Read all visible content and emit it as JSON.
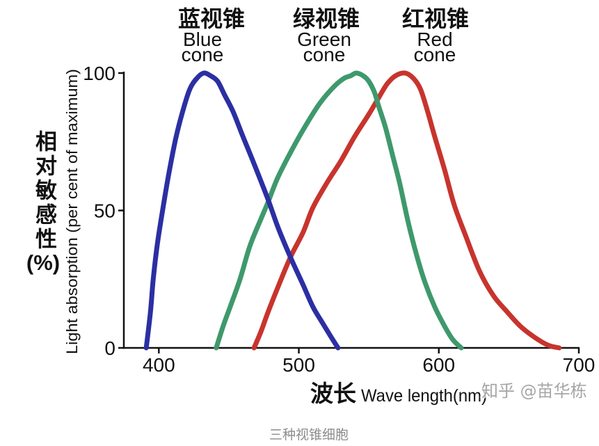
{
  "caption": "三种视锥细胞",
  "watermark": "知乎 @苗华栋",
  "colors": {
    "background": "#ffffff",
    "axis": "#111111",
    "caption": "#8c8c8c",
    "watermark": "#a6a6a6"
  },
  "chart_data": {
    "type": "line",
    "xlabel_zh": "波长",
    "xlabel": "Wave length(nm)",
    "ylabel_zh": "相对敏感性",
    "ylabel_zh_unit": "(%)",
    "ylabel": "Light absorption (per cent of maximum)",
    "xlim": [
      375,
      700
    ],
    "ylim": [
      0,
      100
    ],
    "x_ticks": [
      400,
      500,
      600,
      700
    ],
    "y_ticks": [
      0,
      50,
      100
    ],
    "grid": false,
    "legend": "top",
    "series": [
      {
        "label_zh": "蓝视锥",
        "label_en": [
          "Blue",
          "cone"
        ],
        "color": "#2b2fa3",
        "x": [
          391,
          394,
          396,
          399,
          403,
          407,
          412,
          417,
          422,
          427,
          432,
          437,
          442,
          447,
          453,
          460,
          468,
          478,
          485,
          494,
          503,
          510,
          517,
          523,
          528
        ],
        "y": [
          0,
          13,
          25,
          38,
          51,
          63,
          76,
          86,
          94,
          98,
          100,
          99,
          97,
          92,
          86,
          77,
          67,
          54,
          44,
          33,
          23,
          15,
          9,
          4,
          0
        ]
      },
      {
        "label_zh": "绿视锥",
        "label_en": [
          "Green",
          "cone"
        ],
        "color": "#3e996c",
        "x": [
          441,
          446,
          451,
          458,
          465,
          473,
          478,
          485,
          495,
          505,
          515,
          525,
          532,
          537,
          541,
          546,
          550,
          554,
          557,
          562,
          567,
          572,
          578,
          584,
          590,
          597,
          604,
          610,
          616
        ],
        "y": [
          0,
          8,
          15,
          25,
          37,
          47,
          53,
          62,
          72,
          81,
          89,
          95,
          98,
          99,
          100,
          99,
          97,
          93,
          88,
          80,
          70,
          60,
          46,
          34,
          24,
          15,
          8,
          3,
          0
        ]
      },
      {
        "label_zh": "红视锥",
        "label_en": [
          "Red",
          "cone"
        ],
        "color": "#c7342d",
        "x": [
          468,
          473,
          478,
          485,
          494,
          503,
          510,
          520,
          530,
          540,
          550,
          557,
          563,
          569,
          576,
          582,
          587,
          592,
          597,
          604,
          611,
          619,
          629,
          639,
          649,
          658,
          668,
          678,
          686
        ],
        "y": [
          0,
          6,
          13,
          22,
          33,
          42,
          51,
          60,
          68,
          77,
          85,
          91,
          96,
          99,
          100,
          98,
          94,
          86,
          77,
          65,
          52,
          41,
          28,
          19,
          13,
          8,
          4,
          1,
          0
        ]
      }
    ]
  }
}
